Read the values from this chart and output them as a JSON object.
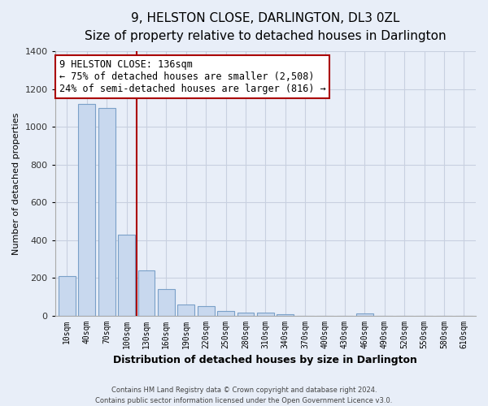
{
  "title": "9, HELSTON CLOSE, DARLINGTON, DL3 0ZL",
  "subtitle": "Size of property relative to detached houses in Darlington",
  "xlabel": "Distribution of detached houses by size in Darlington",
  "ylabel": "Number of detached properties",
  "bar_labels": [
    "10sqm",
    "40sqm",
    "70sqm",
    "100sqm",
    "130sqm",
    "160sqm",
    "190sqm",
    "220sqm",
    "250sqm",
    "280sqm",
    "310sqm",
    "340sqm",
    "370sqm",
    "400sqm",
    "430sqm",
    "460sqm",
    "490sqm",
    "520sqm",
    "550sqm",
    "580sqm",
    "610sqm"
  ],
  "bar_values": [
    210,
    1120,
    1100,
    430,
    240,
    140,
    60,
    48,
    22,
    15,
    15,
    8,
    0,
    0,
    0,
    10,
    0,
    0,
    0,
    0,
    0
  ],
  "bar_color": "#c8d8ee",
  "bar_edge_color": "#7aa0c8",
  "vline_after_index": 3,
  "vline_color": "#aa0000",
  "ylim": [
    0,
    1400
  ],
  "yticks": [
    0,
    200,
    400,
    600,
    800,
    1000,
    1200,
    1400
  ],
  "annotation_title": "9 HELSTON CLOSE: 136sqm",
  "annotation_line1": "← 75% of detached houses are smaller (2,508)",
  "annotation_line2": "24% of semi-detached houses are larger (816) →",
  "annotation_box_color": "#ffffff",
  "annotation_box_edge": "#aa0000",
  "footer_line1": "Contains HM Land Registry data © Crown copyright and database right 2024.",
  "footer_line2": "Contains public sector information licensed under the Open Government Licence v3.0.",
  "background_color": "#e8eef8",
  "plot_background_color": "#e8eef8",
  "grid_color": "#c8d0e0",
  "title_fontsize": 11,
  "subtitle_fontsize": 9.5,
  "ylabel_fontsize": 8,
  "xlabel_fontsize": 9
}
